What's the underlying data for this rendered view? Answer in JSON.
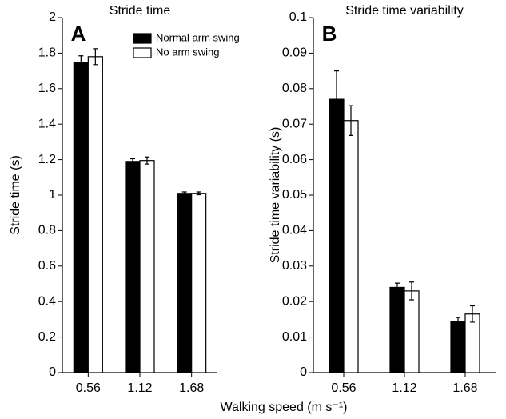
{
  "chart_data": [
    {
      "type": "bar",
      "title": "Stride time",
      "panel_label": "A",
      "ylabel": "Stride time (s)",
      "categories": [
        "0.56",
        "1.12",
        "1.68"
      ],
      "series": [
        {
          "name": "Normal arm swing",
          "color": "#000000",
          "values": [
            1.745,
            1.19,
            1.01
          ],
          "errors": [
            0.04,
            0.015,
            0.008
          ]
        },
        {
          "name": "No arm swing",
          "color": "#ffffff",
          "values": [
            1.78,
            1.195,
            1.01
          ],
          "errors": [
            0.045,
            0.02,
            0.008
          ]
        }
      ],
      "ylim": [
        0,
        2
      ],
      "yticks": [
        0,
        0.2,
        0.4,
        0.6,
        0.8,
        1,
        1.2,
        1.4,
        1.6,
        1.8,
        2
      ],
      "legend": "upper center"
    },
    {
      "type": "bar",
      "title": "Stride time variability",
      "panel_label": "B",
      "ylabel": "Stride time variability (s)",
      "categories": [
        "0.56",
        "1.12",
        "1.68"
      ],
      "series": [
        {
          "color": "#000000",
          "values": [
            0.077,
            0.024,
            0.0145
          ],
          "errors": [
            0.008,
            0.0012,
            0.001
          ]
        },
        {
          "color": "#ffffff",
          "values": [
            0.071,
            0.023,
            0.0165
          ],
          "errors": [
            0.0042,
            0.0025,
            0.0023
          ]
        }
      ],
      "ylim": [
        0,
        0.1
      ],
      "yticks": [
        0,
        0.01,
        0.02,
        0.03,
        0.04,
        0.05,
        0.06,
        0.07,
        0.08,
        0.09,
        0.1
      ]
    }
  ],
  "xlabel": "Walking speed (m s⁻¹)"
}
